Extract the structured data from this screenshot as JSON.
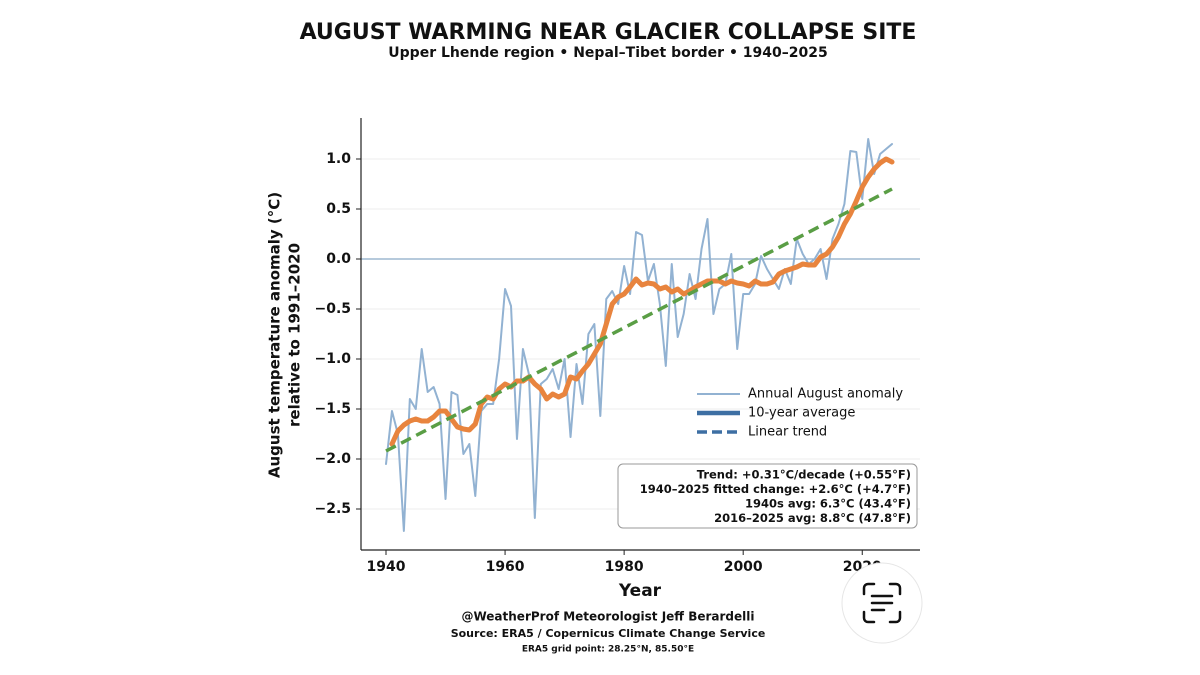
{
  "chart_data": {
    "type": "line",
    "title": "AUGUST WARMING NEAR GLACIER COLLAPSE SITE",
    "subtitle": "Upper Lhende region • Nepal–Tibet border • 1940–2025",
    "xlabel": "Year",
    "ylabel": [
      "August temperature anomaly (°C)",
      "relative to 1991–2020"
    ],
    "x": [
      1940,
      1941,
      1942,
      1943,
      1944,
      1945,
      1946,
      1947,
      1948,
      1949,
      1950,
      1951,
      1952,
      1953,
      1954,
      1955,
      1956,
      1957,
      1958,
      1959,
      1960,
      1961,
      1962,
      1963,
      1964,
      1965,
      1966,
      1967,
      1968,
      1969,
      1970,
      1971,
      1972,
      1973,
      1974,
      1975,
      1976,
      1977,
      1978,
      1979,
      1980,
      1981,
      1982,
      1983,
      1984,
      1985,
      1986,
      1987,
      1988,
      1989,
      1990,
      1991,
      1992,
      1993,
      1994,
      1995,
      1996,
      1997,
      1998,
      1999,
      2000,
      2001,
      2002,
      2003,
      2004,
      2005,
      2006,
      2007,
      2008,
      2009,
      2010,
      2011,
      2012,
      2013,
      2014,
      2015,
      2016,
      2017,
      2018,
      2019,
      2020,
      2021,
      2022,
      2023,
      2024,
      2025
    ],
    "series": [
      {
        "name": "Annual August anomaly",
        "color": "#92b2d2",
        "legend_color": "#92b2d2",
        "width": 2,
        "values": [
          -2.05,
          -1.52,
          -1.75,
          -2.72,
          -1.4,
          -1.5,
          -0.9,
          -1.33,
          -1.28,
          -1.45,
          -2.4,
          -1.33,
          -1.36,
          -1.95,
          -1.85,
          -2.37,
          -1.52,
          -1.45,
          -1.45,
          -1.0,
          -0.3,
          -0.47,
          -1.8,
          -0.9,
          -1.15,
          -2.59,
          -1.25,
          -1.2,
          -1.1,
          -1.3,
          -1.0,
          -1.78,
          -1.05,
          -1.45,
          -0.75,
          -0.65,
          -1.57,
          -0.4,
          -0.32,
          -0.45,
          -0.07,
          -0.35,
          0.27,
          0.24,
          -0.22,
          -0.05,
          -0.45,
          -1.07,
          -0.05,
          -0.78,
          -0.55,
          -0.15,
          -0.4,
          0.1,
          0.4,
          -0.55,
          -0.3,
          -0.25,
          0.05,
          -0.9,
          -0.35,
          -0.35,
          -0.25,
          0.03,
          -0.1,
          -0.2,
          -0.3,
          -0.1,
          -0.25,
          0.2,
          0.05,
          -0.05,
          0.0,
          0.1,
          -0.2,
          0.2,
          0.35,
          0.55,
          1.08,
          1.07,
          0.6,
          1.2,
          0.85,
          1.05,
          1.1,
          1.15
        ]
      },
      {
        "name": "10-year average",
        "color": "#e8843e",
        "legend_color": "#3d6fa3",
        "width": 5,
        "values": [
          null,
          -1.85,
          -1.72,
          -1.66,
          -1.62,
          -1.6,
          -1.62,
          -1.62,
          -1.58,
          -1.52,
          -1.52,
          -1.6,
          -1.68,
          -1.7,
          -1.71,
          -1.65,
          -1.45,
          -1.38,
          -1.4,
          -1.3,
          -1.25,
          -1.28,
          -1.22,
          -1.22,
          -1.18,
          -1.25,
          -1.3,
          -1.4,
          -1.35,
          -1.38,
          -1.35,
          -1.18,
          -1.2,
          -1.12,
          -1.05,
          -0.95,
          -0.85,
          -0.65,
          -0.45,
          -0.38,
          -0.35,
          -0.28,
          -0.2,
          -0.26,
          -0.24,
          -0.25,
          -0.3,
          -0.28,
          -0.33,
          -0.3,
          -0.35,
          -0.32,
          -0.28,
          -0.25,
          -0.22,
          -0.22,
          -0.22,
          -0.25,
          -0.22,
          -0.24,
          -0.25,
          -0.27,
          -0.22,
          -0.25,
          -0.25,
          -0.23,
          -0.15,
          -0.12,
          -0.1,
          -0.08,
          -0.05,
          -0.06,
          -0.06,
          0.02,
          0.05,
          0.12,
          0.22,
          0.35,
          0.45,
          0.58,
          0.72,
          0.82,
          0.9,
          0.96,
          1.0,
          0.97
        ]
      },
      {
        "name": "Linear trend",
        "color": "#5a9e45",
        "legend_color": "#3d6fa3",
        "width": 3.5,
        "dashed": true,
        "x": [
          1940,
          2025
        ],
        "values": [
          -1.92,
          0.7
        ]
      }
    ],
    "xlim": [
      1935.8,
      2029.7
    ],
    "ylim": [
      -2.91,
      1.41
    ],
    "xticks": [
      1940,
      1960,
      1980,
      2000,
      2020
    ],
    "yticks": [
      {
        "value": -2.5,
        "label": "−2.5"
      },
      {
        "value": -2,
        "label": "−2.0"
      },
      {
        "value": -1.5,
        "label": "−1.5"
      },
      {
        "value": -1,
        "label": "−1.0"
      },
      {
        "value": -0.5,
        "label": "−0.5"
      },
      {
        "value": 0,
        "label": "0.0"
      },
      0.5,
      {
        "value": 1,
        "label": "1.0"
      }
    ],
    "grid": true,
    "zero_line": {
      "value": 0,
      "color": "#8aaac8"
    },
    "legend": "right",
    "stats": [
      "Trend: +0.31°C/decade  (+0.55°F)",
      "1940–2025 fitted change: +2.6°C  (+4.7°F)",
      "1940s avg: 6.3°C  (43.4°F)",
      "2016–2025 avg: 8.8°C  (47.8°F)"
    ],
    "footer": [
      "@WeatherProf  Meteorologist Jeff Berardelli",
      "Source: ERA5 / Copernicus Climate Change Service",
      "ERA5 grid point: 28.25°N, 85.50°E"
    ]
  }
}
